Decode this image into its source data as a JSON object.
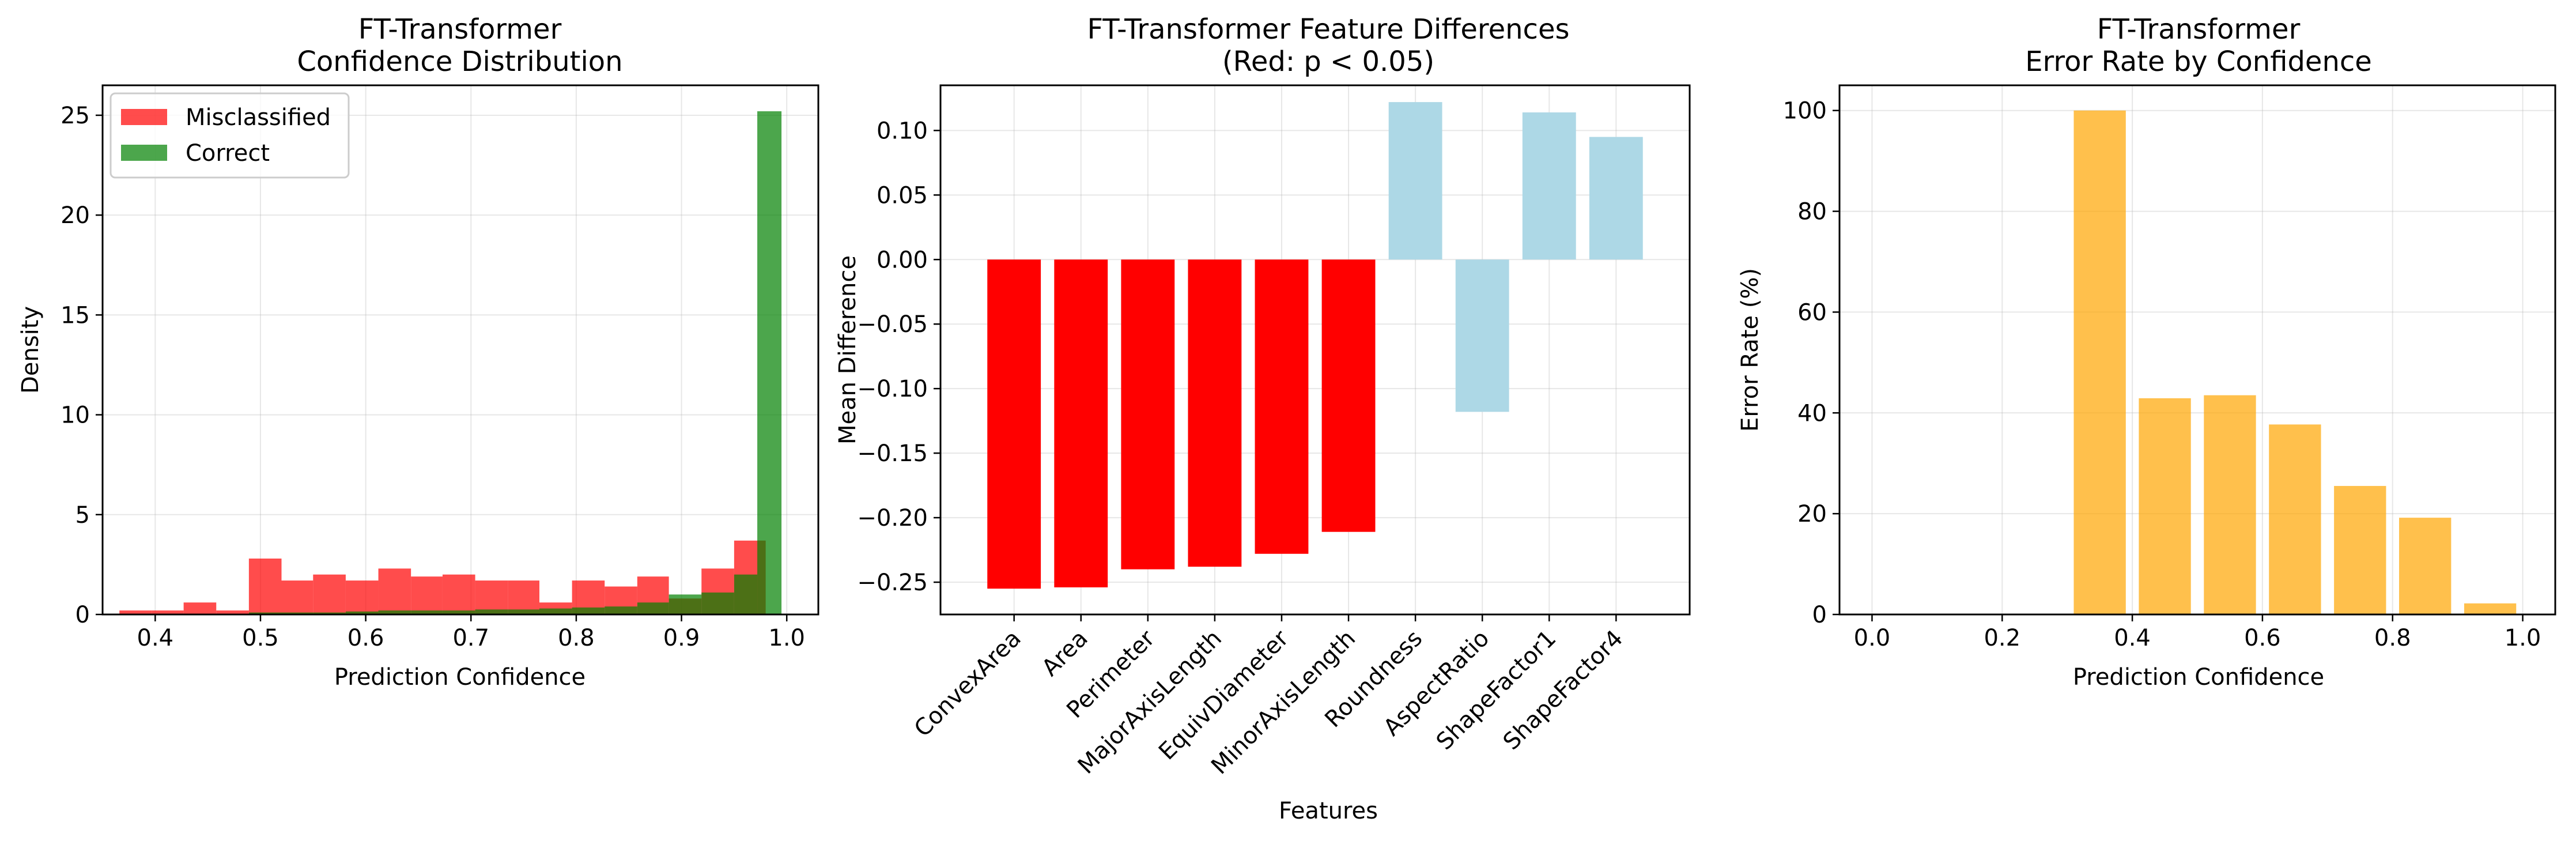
{
  "chart_data": [
    {
      "type": "histogram",
      "title_line1": "FT-Transformer",
      "title_line2": "Confidence Distribution",
      "xlabel": "Prediction Confidence",
      "ylabel": "Density",
      "xlim": [
        0.35,
        1.03
      ],
      "ylim": [
        0,
        26.5
      ],
      "xticks": [
        "0.4",
        "0.5",
        "0.6",
        "0.7",
        "0.8",
        "0.9",
        "1.0"
      ],
      "yticks": [
        "0",
        "5",
        "10",
        "15",
        "20",
        "25"
      ],
      "grid": true,
      "legend_position": "top-left",
      "series": [
        {
          "name": "Misclassified",
          "color": "#ff0000",
          "alpha": 0.7,
          "bins": [
            {
              "x0": 0.366,
              "x1": 0.397,
              "y": 0.2
            },
            {
              "x0": 0.397,
              "x1": 0.427,
              "y": 0.2
            },
            {
              "x0": 0.427,
              "x1": 0.458,
              "y": 0.6
            },
            {
              "x0": 0.458,
              "x1": 0.489,
              "y": 0.2
            },
            {
              "x0": 0.489,
              "x1": 0.52,
              "y": 2.8
            },
            {
              "x0": 0.52,
              "x1": 0.55,
              "y": 1.7
            },
            {
              "x0": 0.55,
              "x1": 0.581,
              "y": 2.0
            },
            {
              "x0": 0.581,
              "x1": 0.612,
              "y": 1.7
            },
            {
              "x0": 0.612,
              "x1": 0.643,
              "y": 2.3
            },
            {
              "x0": 0.643,
              "x1": 0.673,
              "y": 1.9
            },
            {
              "x0": 0.673,
              "x1": 0.704,
              "y": 2.0
            },
            {
              "x0": 0.704,
              "x1": 0.735,
              "y": 1.7
            },
            {
              "x0": 0.735,
              "x1": 0.765,
              "y": 1.7
            },
            {
              "x0": 0.765,
              "x1": 0.796,
              "y": 0.6
            },
            {
              "x0": 0.796,
              "x1": 0.827,
              "y": 1.7
            },
            {
              "x0": 0.827,
              "x1": 0.858,
              "y": 1.4
            },
            {
              "x0": 0.858,
              "x1": 0.888,
              "y": 1.9
            },
            {
              "x0": 0.888,
              "x1": 0.919,
              "y": 0.8
            },
            {
              "x0": 0.919,
              "x1": 0.95,
              "y": 2.3
            },
            {
              "x0": 0.95,
              "x1": 0.98,
              "y": 3.7
            }
          ]
        },
        {
          "name": "Correct",
          "color": "#008000",
          "alpha": 0.7,
          "bins": [
            {
              "x0": 0.489,
              "x1": 0.52,
              "y": 0.1
            },
            {
              "x0": 0.52,
              "x1": 0.55,
              "y": 0.1
            },
            {
              "x0": 0.55,
              "x1": 0.581,
              "y": 0.1
            },
            {
              "x0": 0.581,
              "x1": 0.612,
              "y": 0.15
            },
            {
              "x0": 0.612,
              "x1": 0.643,
              "y": 0.2
            },
            {
              "x0": 0.643,
              "x1": 0.673,
              "y": 0.2
            },
            {
              "x0": 0.673,
              "x1": 0.704,
              "y": 0.2
            },
            {
              "x0": 0.704,
              "x1": 0.735,
              "y": 0.25
            },
            {
              "x0": 0.735,
              "x1": 0.765,
              "y": 0.25
            },
            {
              "x0": 0.765,
              "x1": 0.796,
              "y": 0.3
            },
            {
              "x0": 0.796,
              "x1": 0.827,
              "y": 0.35
            },
            {
              "x0": 0.827,
              "x1": 0.858,
              "y": 0.4
            },
            {
              "x0": 0.858,
              "x1": 0.888,
              "y": 0.6
            },
            {
              "x0": 0.888,
              "x1": 0.919,
              "y": 1.0
            },
            {
              "x0": 0.919,
              "x1": 0.95,
              "y": 1.1
            },
            {
              "x0": 0.95,
              "x1": 0.972,
              "y": 2.0
            },
            {
              "x0": 0.972,
              "x1": 0.995,
              "y": 25.2
            }
          ]
        }
      ]
    },
    {
      "type": "bar",
      "title_line1": "FT-Transformer Feature Differences",
      "title_line2": "(Red: p < 0.05)",
      "xlabel": "Features",
      "ylabel": "Mean Difference",
      "ylim": [
        -0.275,
        0.135
      ],
      "yticks": [
        0.1,
        0.05,
        0.0,
        -0.05,
        -0.1,
        -0.15,
        -0.2,
        -0.25
      ],
      "ytick_labels": [
        "0.10",
        "0.05",
        "0.00",
        "−0.05",
        "−0.10",
        "−0.15",
        "−0.20",
        "−0.25"
      ],
      "grid": true,
      "colors": {
        "significant": "#ff0000",
        "not_significant": "#add8e6"
      },
      "categories": [
        "ConvexArea",
        "Area",
        "Perimeter",
        "MajorAxisLength",
        "EquivDiameter",
        "MinorAxisLength",
        "Roundness",
        "AspectRatio",
        "ShapeFactor1",
        "ShapeFactor4"
      ],
      "values": [
        -0.255,
        -0.254,
        -0.24,
        -0.238,
        -0.228,
        -0.211,
        0.122,
        -0.118,
        0.114,
        0.095
      ],
      "significant": [
        true,
        true,
        true,
        true,
        true,
        true,
        false,
        false,
        false,
        false
      ]
    },
    {
      "type": "bar",
      "title_line1": "FT-Transformer",
      "title_line2": "Error Rate by Confidence",
      "xlabel": "Prediction Confidence",
      "ylabel": "Error Rate (%)",
      "xlim": [
        -0.05,
        1.05
      ],
      "ylim": [
        0,
        105
      ],
      "xticks": [
        "0.0",
        "0.2",
        "0.4",
        "0.6",
        "0.8",
        "1.0"
      ],
      "yticks": [
        "0",
        "20",
        "40",
        "60",
        "80",
        "100"
      ],
      "grid": true,
      "color": "#ffa500",
      "alpha": 0.7,
      "bar_width": 0.08,
      "x": [
        0.35,
        0.45,
        0.55,
        0.65,
        0.75,
        0.85,
        0.95
      ],
      "values": [
        100,
        42.9,
        43.5,
        37.7,
        25.5,
        19.2,
        2.2
      ]
    }
  ]
}
